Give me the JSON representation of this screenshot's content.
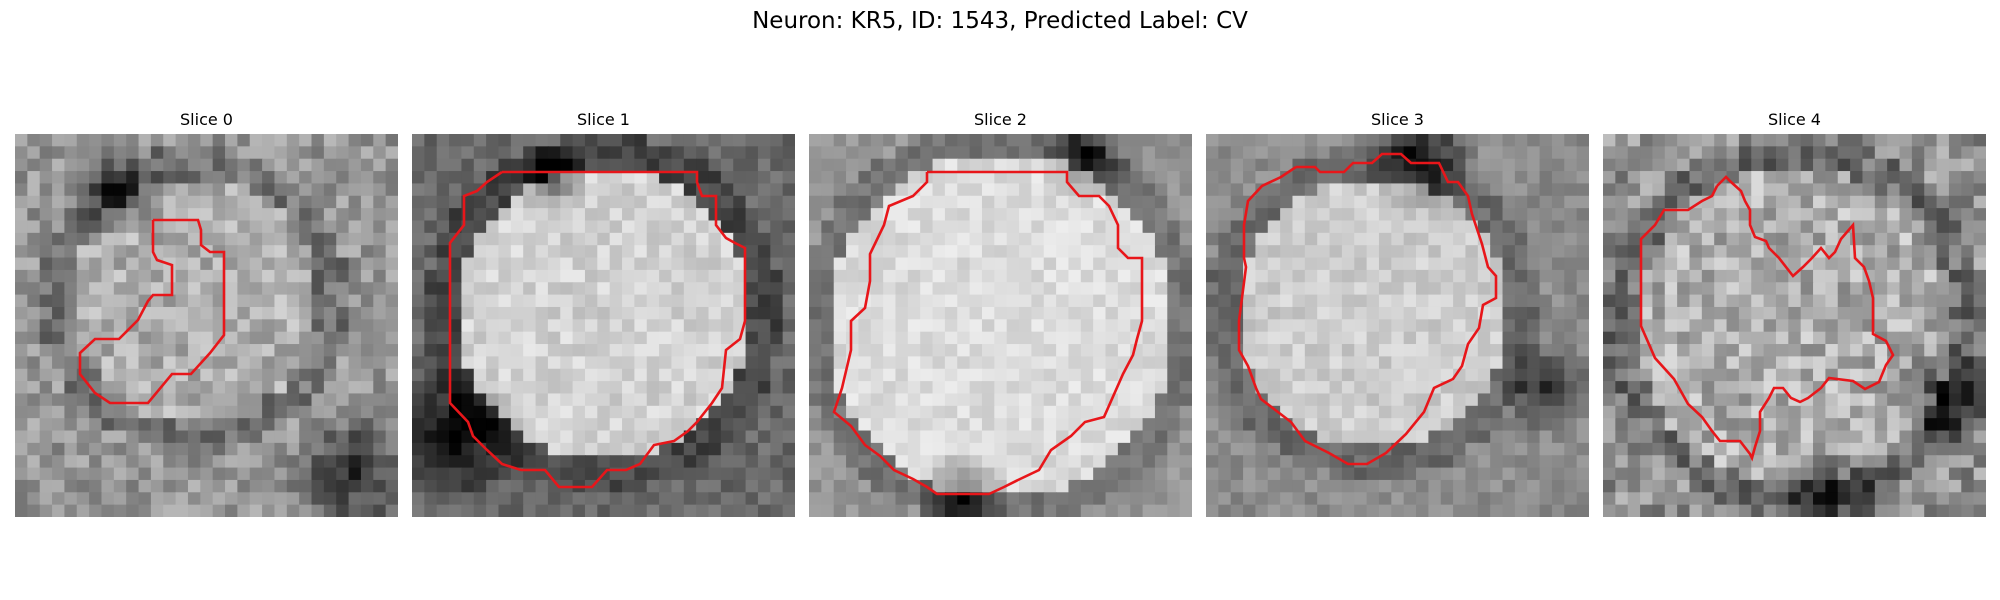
{
  "figure": {
    "title": "Neuron: KR5, ID: 1543, Predicted Label: CV"
  },
  "panels": [
    {
      "title": "Slice 0"
    },
    {
      "title": "Slice 1"
    },
    {
      "title": "Slice 2"
    },
    {
      "title": "Slice 3"
    },
    {
      "title": "Slice 4"
    }
  ],
  "colors": {
    "contour": "#e8161a",
    "colormap": "grayscale"
  }
}
